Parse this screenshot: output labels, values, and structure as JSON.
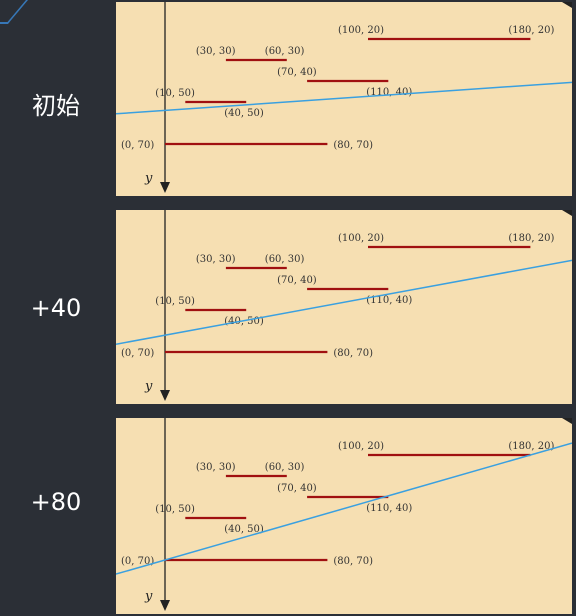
{
  "rows": [
    {
      "label": "初始",
      "line": {
        "y_at_0": 54,
        "y_at_180": 42
      }
    },
    {
      "label": "+40",
      "line": {
        "y_at_0": 62,
        "y_at_180": 30
      }
    },
    {
      "label": "+80",
      "line": {
        "y_at_0": 70,
        "y_at_180": 20
      }
    }
  ],
  "segments": [
    {
      "start": [
        100,
        20
      ],
      "end": [
        180,
        20
      ],
      "start_label": "(100, 20)",
      "end_label": "(180, 20)"
    },
    {
      "start": [
        30,
        30
      ],
      "end": [
        60,
        30
      ],
      "start_label": "(30, 30)",
      "end_label": "(60, 30)"
    },
    {
      "start": [
        70,
        40
      ],
      "end": [
        110,
        40
      ],
      "start_label": "(70, 40)",
      "end_label": "(110, 40)"
    },
    {
      "start": [
        10,
        50
      ],
      "end": [
        40,
        50
      ],
      "start_label": "(10, 50)",
      "end_label": "(40, 50)"
    },
    {
      "start": [
        0,
        70
      ],
      "end": [
        80,
        70
      ],
      "start_label": "(0, 70)",
      "end_label": "(80, 70)"
    }
  ],
  "axis_label": "y",
  "colors": {
    "segment": "#a01010",
    "sweep_line": "#3aa0e0",
    "axis": "#222222",
    "panel_bg": "#f6dfb2"
  }
}
